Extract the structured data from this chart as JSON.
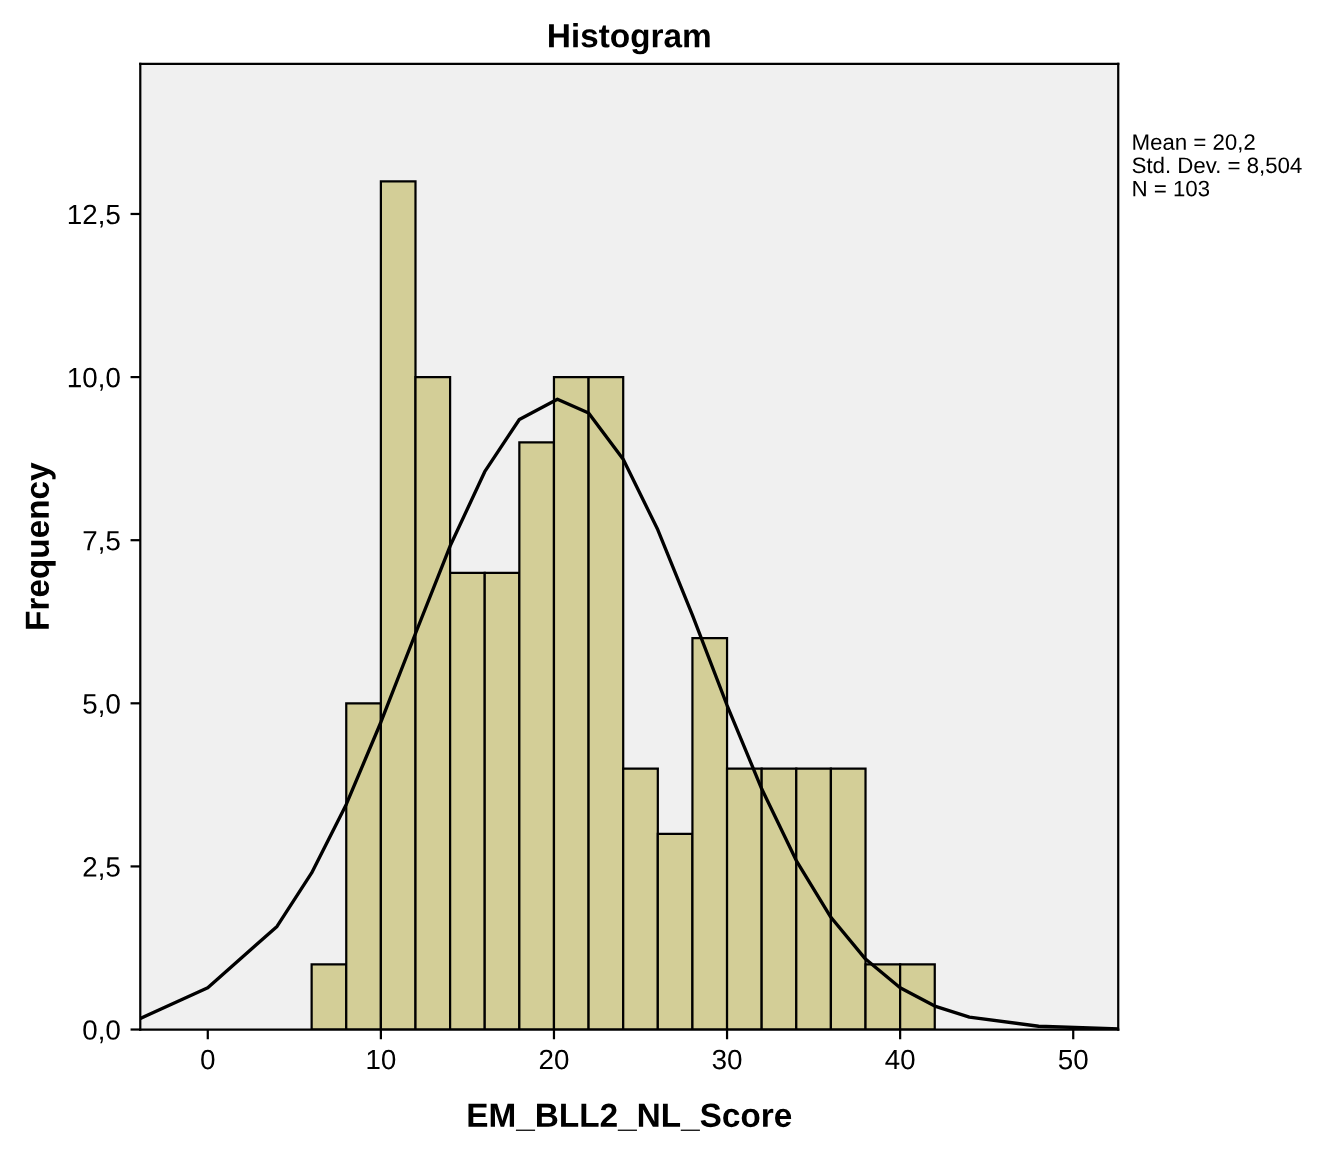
{
  "chart_data": {
    "type": "histogram",
    "title": "Histogram",
    "xlabel": "EM_BLL2_NL_Score",
    "ylabel": "Frequency",
    "bins": [
      6,
      8,
      10,
      12,
      14,
      16,
      18,
      20,
      22,
      24,
      26,
      28,
      30,
      32,
      34,
      36,
      38,
      40,
      42
    ],
    "values": [
      1,
      5,
      13,
      10,
      7,
      7,
      9,
      10,
      10,
      4,
      3,
      6,
      4,
      4,
      4,
      4,
      1,
      1
    ],
    "color": "#d3ce97",
    "series": [
      {
        "type": "line",
        "color": "#000000",
        "x": [
          -3.9,
          0,
          4,
          6,
          8,
          10,
          12,
          14,
          16,
          18,
          20.2,
          22,
          24,
          26,
          28,
          30,
          32,
          34,
          36,
          38,
          40,
          42,
          44,
          48,
          52.6
        ],
        "values": [
          0.17,
          0.64,
          1.58,
          2.4,
          3.45,
          4.71,
          6.07,
          7.41,
          8.55,
          9.35,
          9.66,
          9.45,
          8.74,
          7.66,
          6.35,
          4.97,
          3.69,
          2.59,
          1.72,
          1.08,
          0.64,
          0.36,
          0.19,
          0.05,
          0.01
        ]
      }
    ],
    "xlim": [
      -3.9,
      52.6
    ],
    "xticks": [
      0,
      10,
      20,
      30,
      40,
      50
    ],
    "ylim": [
      0,
      14.8
    ],
    "yticks": [
      {
        "value": 0,
        "label": "0,0"
      },
      {
        "value": 2.5,
        "label": "2,5"
      },
      {
        "value": 5,
        "label": "5,0"
      },
      {
        "value": 7.5,
        "label": "7,5"
      },
      {
        "value": 10,
        "label": "10,0"
      },
      {
        "value": 12.5,
        "label": "12,5"
      }
    ],
    "grid": false,
    "marker": "none",
    "annotations": [
      "Mean = 20,2",
      "Std. Dev. = 8,504",
      "N = 103"
    ]
  }
}
